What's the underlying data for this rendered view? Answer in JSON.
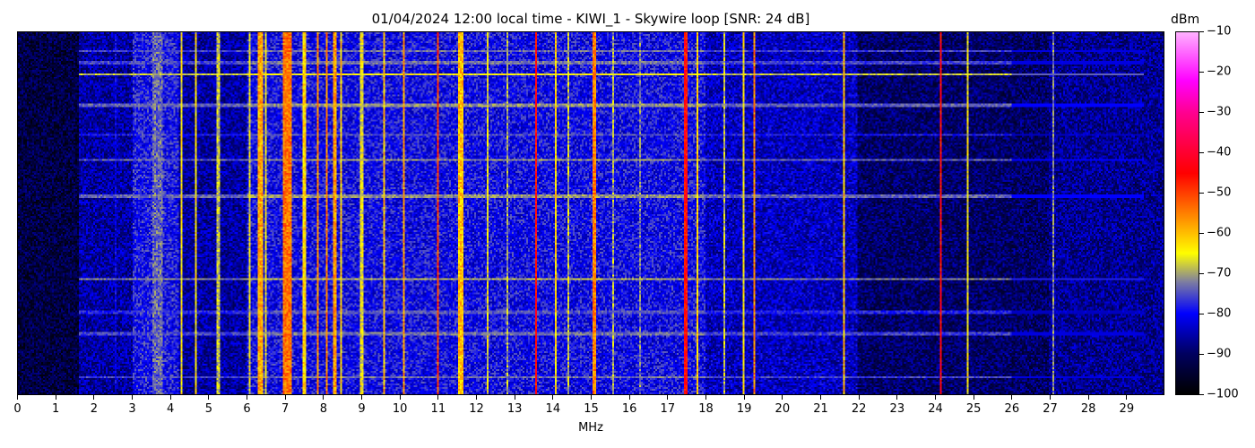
{
  "chart_data": {
    "type": "heatmap",
    "title": "01/04/2024 12:00 local time - KIWI_1 - Skywire loop [SNR: 24 dB]",
    "xlabel": "MHz",
    "ylabel": "",
    "xlim": [
      0,
      30
    ],
    "xticks": [
      "0",
      "1",
      "2",
      "3",
      "4",
      "5",
      "6",
      "7",
      "8",
      "9",
      "10",
      "11",
      "12",
      "13",
      "14",
      "15",
      "16",
      "17",
      "18",
      "19",
      "20",
      "21",
      "22",
      "23",
      "24",
      "25",
      "26",
      "27",
      "28",
      "29"
    ],
    "colorbar": {
      "label": "dBm",
      "range": [
        -100,
        -10
      ],
      "ticks": [
        "-10",
        "-20",
        "-30",
        "-40",
        "-50",
        "-60",
        "-70",
        "-80",
        "-90",
        "-100"
      ],
      "colormap_stops": [
        {
          "value": -100,
          "color": "#000000"
        },
        {
          "value": -90,
          "color": "#000060"
        },
        {
          "value": -80,
          "color": "#0000ff"
        },
        {
          "value": -72,
          "color": "#8080a0"
        },
        {
          "value": -65,
          "color": "#ffff00"
        },
        {
          "value": -55,
          "color": "#ff8000"
        },
        {
          "value": -45,
          "color": "#ff0000"
        },
        {
          "value": -30,
          "color": "#ff0090"
        },
        {
          "value": -22,
          "color": "#ff00ff"
        },
        {
          "value": -10,
          "color": "#ffb0ff"
        }
      ]
    },
    "noise_floor_bands_mhz_dbm": [
      [
        0,
        1.6,
        -93
      ],
      [
        1.6,
        3.0,
        -86
      ],
      [
        3.0,
        4.2,
        -79
      ],
      [
        4.2,
        6.0,
        -86
      ],
      [
        6.0,
        18.0,
        -80
      ],
      [
        18.0,
        22.0,
        -84
      ],
      [
        22.0,
        27.0,
        -90
      ],
      [
        27.0,
        30.0,
        -87
      ]
    ],
    "vertical_signals_mhz_dbm_width": [
      [
        2.55,
        -82,
        0.04
      ],
      [
        3.65,
        -74,
        0.25
      ],
      [
        4.3,
        -64,
        0.03
      ],
      [
        4.65,
        -64,
        0.03
      ],
      [
        5.25,
        -68,
        0.05
      ],
      [
        6.05,
        -66,
        0.03
      ],
      [
        6.35,
        -58,
        0.1
      ],
      [
        6.5,
        -66,
        0.05
      ],
      [
        7.05,
        -54,
        0.2
      ],
      [
        7.5,
        -62,
        0.03
      ],
      [
        7.85,
        -55,
        0.04
      ],
      [
        8.1,
        -55,
        0.05
      ],
      [
        8.3,
        -57,
        0.06
      ],
      [
        8.45,
        -62,
        0.04
      ],
      [
        9.0,
        -66,
        0.03
      ],
      [
        9.6,
        -60,
        0.03
      ],
      [
        10.1,
        -57,
        0.07
      ],
      [
        11.0,
        -50,
        0.03
      ],
      [
        11.6,
        -60,
        0.15
      ],
      [
        12.3,
        -66,
        0.03
      ],
      [
        12.8,
        -70,
        0.04
      ],
      [
        13.55,
        -45,
        0.04
      ],
      [
        14.1,
        -62,
        0.06
      ],
      [
        14.4,
        -68,
        0.05
      ],
      [
        15.1,
        -55,
        0.12
      ],
      [
        15.6,
        -70,
        0.04
      ],
      [
        16.3,
        -72,
        0.04
      ],
      [
        17.5,
        -45,
        0.1
      ],
      [
        17.8,
        -62,
        0.04
      ],
      [
        18.5,
        -68,
        0.03
      ],
      [
        19.0,
        -64,
        0.03
      ],
      [
        19.3,
        -55,
        0.03
      ],
      [
        21.65,
        -60,
        0.05
      ],
      [
        24.15,
        -45,
        0.03
      ],
      [
        24.85,
        -65,
        0.03
      ],
      [
        27.1,
        -72,
        0.04
      ]
    ],
    "horizontal_signals_fraction_dbm": [
      [
        0.05,
        -76
      ],
      [
        0.08,
        -76
      ],
      [
        0.113,
        -68
      ],
      [
        0.2,
        -74
      ],
      [
        0.28,
        -78
      ],
      [
        0.35,
        -74
      ],
      [
        0.45,
        -74
      ],
      [
        0.68,
        -72
      ],
      [
        0.77,
        -78
      ],
      [
        0.83,
        -76
      ],
      [
        0.95,
        -76
      ]
    ]
  }
}
